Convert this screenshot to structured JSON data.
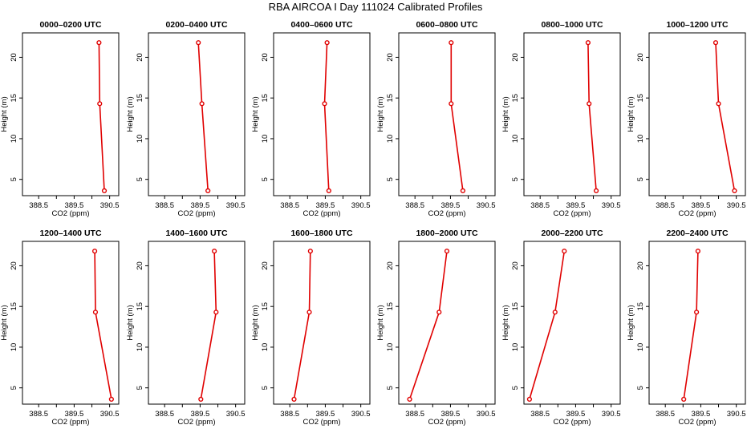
{
  "title": "RBA AIRCOA I  Day 111024  Calibrated Profiles",
  "chart_data": {
    "type": "line",
    "layout": {
      "rows": 2,
      "columns": 6
    },
    "xlabel": "CO2 (ppm)",
    "ylabel": "Height (m)",
    "xlim": [
      388.1,
      390.7
    ],
    "ylim": [
      3,
      23
    ],
    "xticks": [
      388.5,
      389.5,
      390.5
    ],
    "xticks_labels": [
      "388.5",
      "389.5",
      "390.5"
    ],
    "xticks_minor": [
      389.0,
      390.0
    ],
    "yticks": [
      5,
      10,
      15,
      20
    ],
    "yticks_labels": [
      "5",
      "10",
      "15",
      "20"
    ],
    "line_color": "#e00000",
    "marker_color": "#e00000",
    "panels": [
      {
        "title": "0000–0200 UTC",
        "x": [
          390.35,
          390.22,
          390.2
        ],
        "y": [
          3.6,
          14.3,
          21.8
        ]
      },
      {
        "title": "0200–0400 UTC",
        "x": [
          389.72,
          389.55,
          389.45
        ],
        "y": [
          3.6,
          14.3,
          21.8
        ]
      },
      {
        "title": "0400–0600 UTC",
        "x": [
          389.6,
          389.48,
          389.55
        ],
        "y": [
          3.6,
          14.3,
          21.8
        ]
      },
      {
        "title": "0600–0800 UTC",
        "x": [
          389.85,
          389.52,
          389.52
        ],
        "y": [
          3.6,
          14.3,
          21.8
        ]
      },
      {
        "title": "0800–1000 UTC",
        "x": [
          390.08,
          389.88,
          389.85
        ],
        "y": [
          3.6,
          14.3,
          21.8
        ]
      },
      {
        "title": "1000–1200 UTC",
        "x": [
          390.45,
          390.0,
          389.92
        ],
        "y": [
          3.6,
          14.3,
          21.8
        ]
      },
      {
        "title": "1200–1400 UTC",
        "x": [
          390.55,
          390.1,
          390.08
        ],
        "y": [
          3.6,
          14.3,
          21.8
        ]
      },
      {
        "title": "1400–1600 UTC",
        "x": [
          389.52,
          389.95,
          389.9
        ],
        "y": [
          3.6,
          14.3,
          21.8
        ]
      },
      {
        "title": "1600–1800 UTC",
        "x": [
          388.62,
          389.05,
          389.08
        ],
        "y": [
          3.6,
          14.3,
          21.8
        ]
      },
      {
        "title": "1800–2000 UTC",
        "x": [
          388.35,
          389.18,
          389.4
        ],
        "y": [
          3.6,
          14.3,
          21.8
        ]
      },
      {
        "title": "2000–2200 UTC",
        "x": [
          388.2,
          388.92,
          389.18
        ],
        "y": [
          3.6,
          14.3,
          21.8
        ]
      },
      {
        "title": "2200–2400 UTC",
        "x": [
          389.02,
          389.38,
          389.42
        ],
        "y": [
          3.6,
          14.3,
          21.8
        ]
      }
    ]
  }
}
